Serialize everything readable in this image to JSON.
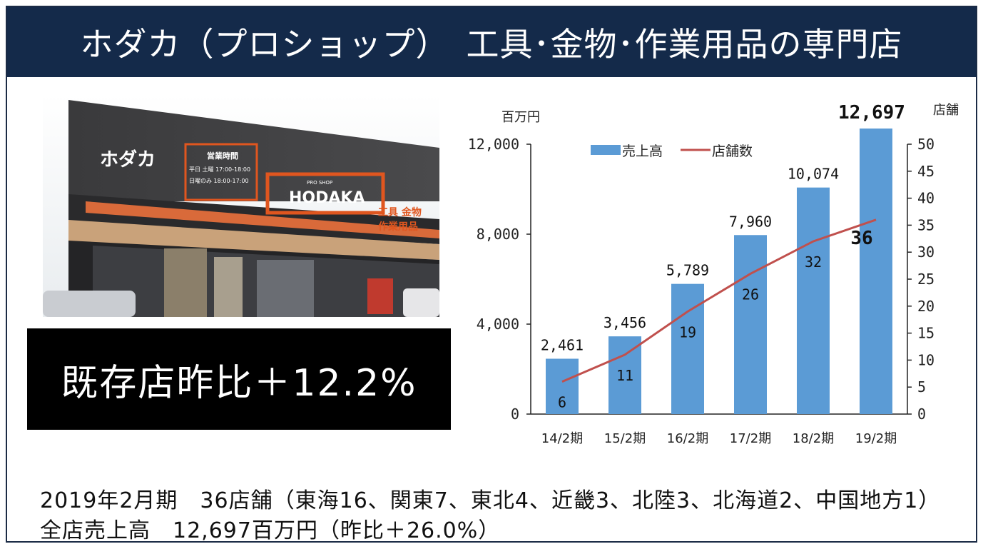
{
  "header": {
    "title": "ホダカ（プロショップ）　工具･金物･作業用品の専門店"
  },
  "photo": {
    "sign_left": "ホダカ",
    "hours_title": "営業時間",
    "hours_line1": "平日 土曜 17:00-18:00",
    "hours_line2": "日曜のみ 18:00-17:00",
    "brand_small": "PRO SHOP",
    "brand": "HODAKA",
    "side_text_1": "工具 金物",
    "side_text_2": "作業用品"
  },
  "badge": {
    "text": "既存店昨比＋12.2%"
  },
  "footer": {
    "line1": "2019年2月期　36店舗（東海16、関東7、東北4、近畿3、北陸3、北海道2、中国地方1）",
    "line2": "全店売上高　12,697百万円（昨比＋26.0%）"
  },
  "chart_data": {
    "type": "bar",
    "categories": [
      "14/2期",
      "15/2期",
      "16/2期",
      "17/2期",
      "18/2期",
      "19/2期"
    ],
    "series": [
      {
        "name": "売上高",
        "type": "bar",
        "axis": "left",
        "values": [
          2461,
          3456,
          5789,
          7960,
          10074,
          12697
        ],
        "labels": [
          "2,461",
          "3,456",
          "5,789",
          "7,960",
          "10,074",
          "12,697"
        ],
        "color": "#5b9bd5"
      },
      {
        "name": "店舗数",
        "type": "line",
        "axis": "right",
        "values": [
          6,
          11,
          19,
          26,
          32,
          36
        ],
        "color": "#c0504d"
      }
    ],
    "ylabel_left": "百万円",
    "ylabel_right": "店舗",
    "ylim_left": [
      0,
      12000
    ],
    "ylim_right": [
      0,
      50
    ],
    "yticks_left": [
      "0",
      "4,000",
      "8,000",
      "12,000"
    ],
    "yticks_left_values": [
      0,
      4000,
      8000,
      12000
    ],
    "yticks_right": [
      "0",
      "5",
      "10",
      "15",
      "20",
      "25",
      "30",
      "35",
      "40",
      "45",
      "50"
    ],
    "yticks_right_values": [
      0,
      5,
      10,
      15,
      20,
      25,
      30,
      35,
      40,
      45,
      50
    ],
    "legend_position": "top"
  }
}
